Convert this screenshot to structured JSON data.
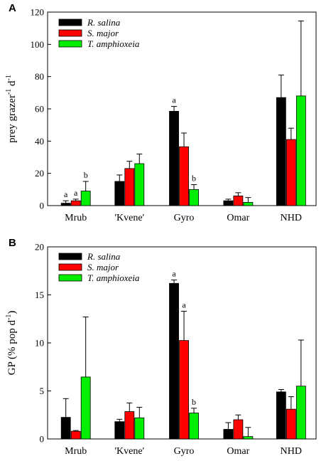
{
  "chart_data": [
    {
      "panel": "A",
      "type": "bar",
      "categories": [
        "Mrub",
        "'Kvene'",
        "Gyro",
        "Omar",
        "NHD"
      ],
      "ylabel": {
        "base": "prey grazer",
        "sup1": "-1",
        "mid": " d",
        "sup2": "-1"
      },
      "ylim": [
        0,
        120
      ],
      "yticks": [
        0,
        20,
        40,
        60,
        80,
        100,
        120
      ],
      "legend_position": "top-left",
      "series": [
        {
          "name": "R. salina",
          "color": "#000000",
          "values": [
            1.5,
            15,
            58.5,
            3,
            67
          ],
          "errors": [
            1.5,
            4,
            3,
            1,
            14
          ],
          "letters": [
            "a",
            "",
            "a",
            "",
            ""
          ]
        },
        {
          "name": "S. major",
          "color": "#ff0000",
          "values": [
            3,
            23,
            36.5,
            6,
            41
          ],
          "errors": [
            1,
            4.5,
            8.5,
            2,
            7
          ],
          "letters": [
            "a",
            "",
            "",
            "",
            ""
          ]
        },
        {
          "name": "T. amphioxeia",
          "color": "#00ee00",
          "values": [
            9,
            26,
            10,
            2,
            68
          ],
          "errors": [
            6,
            6,
            3,
            3,
            46.5
          ],
          "letters": [
            "b",
            "",
            "b",
            "",
            ""
          ]
        }
      ]
    },
    {
      "panel": "B",
      "type": "bar",
      "categories": [
        "Mrub",
        "'Kvene'",
        "Gyro",
        "Omar",
        "NHD"
      ],
      "ylabel": {
        "base": "GP (% pop d",
        "sup1": "-1",
        "mid": ")",
        "sup2": ""
      },
      "ylim": [
        0,
        20
      ],
      "yticks": [
        0,
        5,
        10,
        15,
        20
      ],
      "legend_position": "top-left",
      "series": [
        {
          "name": "R. salina",
          "color": "#000000",
          "values": [
            2.25,
            1.8,
            16.2,
            1,
            4.9
          ],
          "errors": [
            1.95,
            0.25,
            0.35,
            0.7,
            0.25
          ],
          "letters": [
            "",
            "",
            "a",
            "",
            ""
          ]
        },
        {
          "name": "S. major",
          "color": "#ff0000",
          "values": [
            0.8,
            2.85,
            10.25,
            2,
            3.1
          ],
          "errors": [
            0.08,
            0.9,
            3.05,
            0.5,
            1.3
          ],
          "letters": [
            "",
            "",
            "a",
            "",
            ""
          ]
        },
        {
          "name": "T. amphioxeia",
          "color": "#00ee00",
          "values": [
            6.45,
            2.2,
            2.7,
            0.25,
            5.5
          ],
          "errors": [
            6.25,
            1.1,
            0.5,
            0.95,
            4.8
          ],
          "letters": [
            "",
            "",
            "b",
            "",
            ""
          ]
        }
      ]
    }
  ]
}
